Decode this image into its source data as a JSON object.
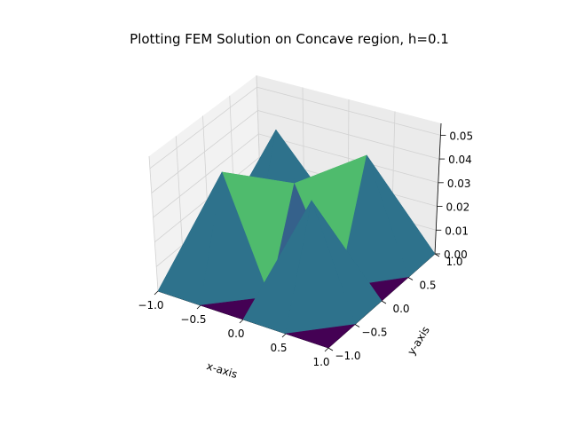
{
  "chart_data": {
    "type": "surface3d",
    "title": "Plotting FEM Solution on Concave region, h=0.1",
    "xlabel": "x-axis",
    "ylabel": "y-axis",
    "zlabel": "",
    "xlim": [
      -1.0,
      1.0
    ],
    "ylim": [
      -1.0,
      1.0
    ],
    "zlim": [
      0.0,
      0.055
    ],
    "x_ticks": [
      -1.0,
      -0.5,
      0.0,
      0.5,
      1.0
    ],
    "x_tick_labels": [
      "−1.0",
      "−0.5",
      "0.0",
      "0.5",
      "1.0"
    ],
    "y_ticks": [
      -1.0,
      -0.5,
      0.0,
      0.5,
      1.0
    ],
    "y_tick_labels": [
      "−1.0",
      "−0.5",
      "0.0",
      "0.5",
      "1.0"
    ],
    "z_ticks": [
      0.0,
      0.01,
      0.02,
      0.03,
      0.04,
      0.05
    ],
    "z_tick_labels": [
      "0.00",
      "0.01",
      "0.02",
      "0.03",
      "0.04",
      "0.05"
    ],
    "grid": true,
    "colormap": "viridis",
    "colormap_stops": [
      "#440154",
      "#3b528b",
      "#21918c",
      "#5ec962",
      "#fde725"
    ],
    "nodes": [
      [
        -1.0,
        -1.0,
        0.0
      ],
      [
        -0.5,
        -1.0,
        0.0
      ],
      [
        0.0,
        -1.0,
        0.0
      ],
      [
        0.5,
        -1.0,
        0.0
      ],
      [
        1.0,
        -1.0,
        0.0
      ],
      [
        -1.0,
        -0.5,
        0.0
      ],
      [
        -0.5,
        -0.5,
        0.046
      ],
      [
        0.0,
        -0.5,
        0.0
      ],
      [
        0.5,
        -0.5,
        0.046
      ],
      [
        1.0,
        -0.5,
        0.0
      ],
      [
        -1.0,
        0.0,
        0.0
      ],
      [
        -0.5,
        0.0,
        0.0
      ],
      [
        0.0,
        0.0,
        0.038
      ],
      [
        0.5,
        0.0,
        0.0
      ],
      [
        1.0,
        0.0,
        0.0
      ],
      [
        -1.0,
        0.5,
        0.0
      ],
      [
        -0.5,
        0.5,
        0.046
      ],
      [
        0.0,
        0.5,
        0.0
      ],
      [
        0.5,
        0.5,
        0.046
      ],
      [
        1.0,
        0.5,
        0.0
      ],
      [
        -1.0,
        1.0,
        0.0
      ],
      [
        -0.5,
        1.0,
        0.0
      ],
      [
        0.0,
        1.0,
        0.0
      ],
      [
        0.5,
        1.0,
        0.0
      ],
      [
        1.0,
        1.0,
        0.0
      ]
    ]
  }
}
